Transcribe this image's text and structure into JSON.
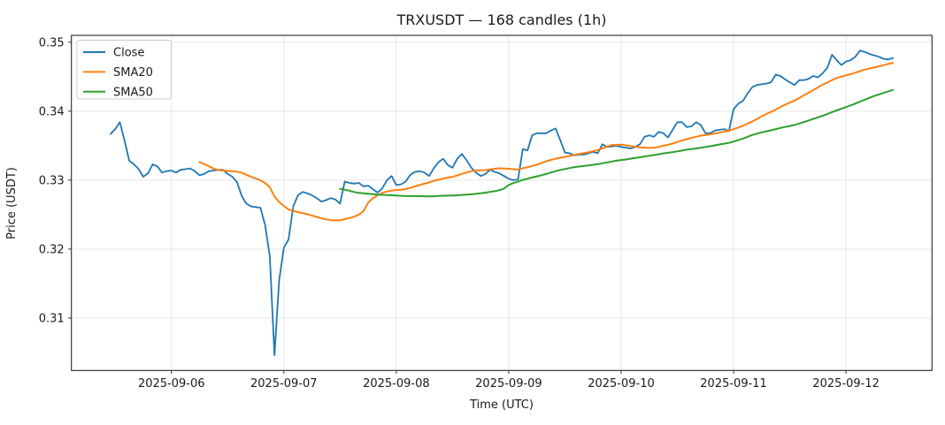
{
  "chart_data": {
    "type": "line",
    "title": "TRXUSDT — 168 candles (1h)",
    "xlabel": "Time (UTC)",
    "ylabel": "Price (USDT)",
    "symbol": "TRXUSDT",
    "timeframe": "1h",
    "candle_count": 168,
    "grid": true,
    "legend_position": "upper left",
    "ylim": [
      0.3024,
      0.351
    ],
    "y_ticks": [
      0.31,
      0.32,
      0.33,
      0.34,
      0.35
    ],
    "y_tick_decimals": 2,
    "x_tick_labels": [
      "2025-09-06",
      "2025-09-07",
      "2025-09-08",
      "2025-09-09",
      "2025-09-10",
      "2025-09-11",
      "2025-09-12"
    ],
    "x_tick_indices": [
      13,
      37,
      61,
      85,
      109,
      133,
      157
    ],
    "x_start_utc": "2025-09-05 11:00",
    "x_step_hours": 1,
    "series": [
      {
        "name": "Close",
        "color": "#1f77b4",
        "kind": "raw",
        "line_width": 1.8,
        "values": [
          0.3367,
          0.3374,
          0.3384,
          0.3357,
          0.3328,
          0.3323,
          0.3316,
          0.3305,
          0.331,
          0.3323,
          0.332,
          0.3311,
          0.3313,
          0.3314,
          0.3311,
          0.3315,
          0.3316,
          0.3317,
          0.3313,
          0.3307,
          0.3309,
          0.3313,
          0.3314,
          0.3315,
          0.3315,
          0.3309,
          0.3305,
          0.3297,
          0.3277,
          0.3266,
          0.3262,
          0.3261,
          0.326,
          0.3235,
          0.319,
          0.3046,
          0.3155,
          0.3202,
          0.3214,
          0.3262,
          0.3278,
          0.3283,
          0.3281,
          0.3278,
          0.3274,
          0.3269,
          0.3271,
          0.3274,
          0.3272,
          0.3266,
          0.3298,
          0.3296,
          0.3295,
          0.3296,
          0.3291,
          0.3292,
          0.3287,
          0.3282,
          0.3288,
          0.33,
          0.3306,
          0.3293,
          0.3294,
          0.3298,
          0.3308,
          0.3312,
          0.3313,
          0.3311,
          0.3306,
          0.3317,
          0.3326,
          0.3331,
          0.3322,
          0.3318,
          0.3331,
          0.3338,
          0.3329,
          0.3318,
          0.3311,
          0.3306,
          0.3309,
          0.3315,
          0.3312,
          0.331,
          0.3306,
          0.3302,
          0.33,
          0.3301,
          0.3345,
          0.3343,
          0.3365,
          0.3368,
          0.3368,
          0.3368,
          0.3372,
          0.3375,
          0.3358,
          0.334,
          0.3339,
          0.3336,
          0.3337,
          0.3337,
          0.3339,
          0.3341,
          0.3339,
          0.3352,
          0.3348,
          0.3349,
          0.335,
          0.3348,
          0.3347,
          0.3346,
          0.3348,
          0.3352,
          0.3363,
          0.3365,
          0.3363,
          0.337,
          0.3368,
          0.3362,
          0.3373,
          0.3384,
          0.3384,
          0.3377,
          0.3378,
          0.3384,
          0.338,
          0.3368,
          0.3368,
          0.3372,
          0.3373,
          0.3374,
          0.3371,
          0.3403,
          0.3411,
          0.3415,
          0.3426,
          0.3435,
          0.3438,
          0.3439,
          0.344,
          0.3442,
          0.3453,
          0.3451,
          0.3446,
          0.3442,
          0.3438,
          0.3445,
          0.3445,
          0.3447,
          0.3451,
          0.3449,
          0.3455,
          0.3463,
          0.3482,
          0.3474,
          0.3467,
          0.3472,
          0.3474,
          0.3479,
          0.3488,
          0.3486,
          0.3483,
          0.3481,
          0.3479,
          0.3476,
          0.3475,
          0.3477
        ]
      },
      {
        "name": "SMA20",
        "color": "#ff7f0e",
        "kind": "sma",
        "period": 20,
        "line_width": 2.0
      },
      {
        "name": "SMA50",
        "color": "#2ca02c",
        "kind": "sma",
        "period": 50,
        "line_width": 2.0
      }
    ],
    "colors": {
      "spine": "#262626",
      "grid": "#e7e7e7",
      "tick": "#262626",
      "text": "#1a1a1a",
      "legend_border": "#cccccc",
      "background": "#ffffff"
    }
  }
}
